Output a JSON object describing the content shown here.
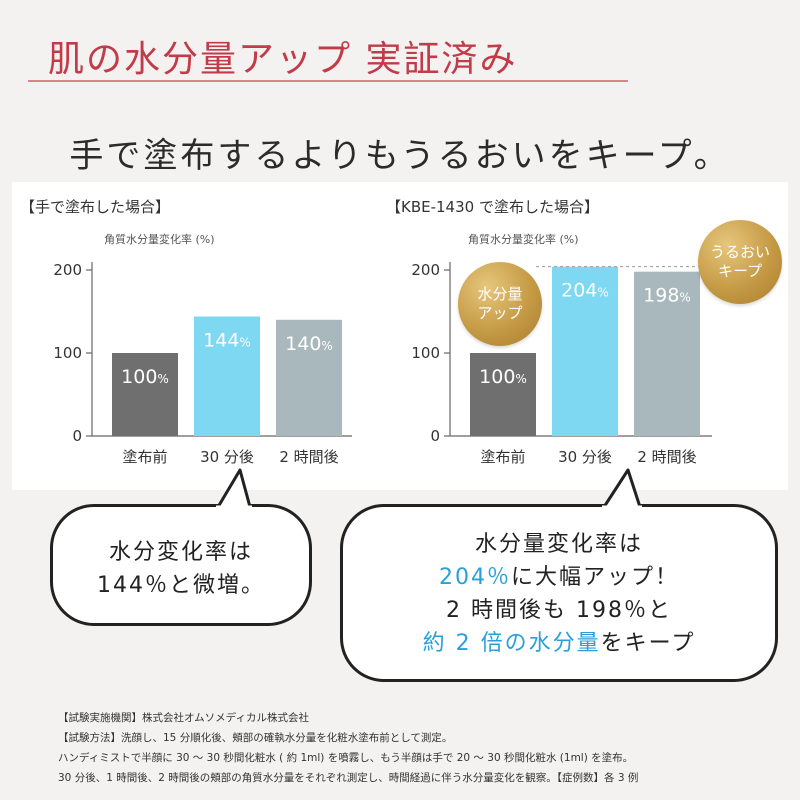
{
  "headline": "肌の水分量アップ 実証済み",
  "subheadline": "手で塗布するよりもうるおいをキープ。",
  "chart_data": [
    {
      "type": "bar",
      "title": "【手で塗布した場合】",
      "ylabel": "角質水分量変化率 (%)",
      "ylim": [
        0,
        200
      ],
      "yticks": [
        0,
        100,
        200
      ],
      "categories": [
        "塗布前",
        "30 分後",
        "2 時間後"
      ],
      "values": [
        100,
        144,
        140
      ],
      "value_labels": [
        "100",
        "144",
        "140"
      ],
      "unit": "%",
      "colors": [
        "#6f6f6f",
        "#7ed8f1",
        "#a8b8bc"
      ],
      "grid": false
    },
    {
      "type": "bar",
      "title": "【KBE-1430 で塗布した場合】",
      "ylabel": "角質水分量変化率 (%)",
      "ylim": [
        0,
        200
      ],
      "yticks": [
        0,
        100,
        200
      ],
      "categories": [
        "塗布前",
        "30 分後",
        "2 時間後"
      ],
      "values": [
        100,
        204,
        198
      ],
      "value_labels": [
        "100",
        "204",
        "198"
      ],
      "unit": "%",
      "colors": [
        "#6f6f6f",
        "#7ed8f1",
        "#a8b8bc"
      ],
      "grid": false,
      "annotations": [
        {
          "text": [
            "水分量",
            "アップ"
          ],
          "target": "30 分後"
        },
        {
          "text": [
            "うるおい",
            "キープ"
          ],
          "target": "2 時間後"
        }
      ]
    }
  ],
  "bubbles": {
    "left": {
      "lines": [
        "水分変化率は",
        "144％と微増。"
      ]
    },
    "right": {
      "line1": "水分量変化率は",
      "line2_highlight": "204％",
      "line2_rest": "に大幅アップ！",
      "line3": "2 時間後も 198％と",
      "line4_highlight": "約 2 倍の水分量",
      "line4_rest": "をキープ"
    }
  },
  "colors": {
    "headline": "#c23b48",
    "highlight": "#2a9fd8",
    "gold": "#c59a45"
  },
  "notes": [
    "【試験実施機関】株式会社オムソメディカル株式会社",
    "【試験方法】洗顔し、15 分順化後、頬部の確執水分量を化粧水塗布前として測定。",
    "ハンディミストで半顔に 30 ～ 30 秒間化粧水 ( 約 1ml) を噴霧し、もう半顔は手で 20 ～ 30 秒間化粧水 (1ml) を塗布。",
    "30 分後、1 時間後、2 時間後の頬部の角質水分量をそれぞれ測定し、時間経過に伴う水分量変化を観察。【症例数】各 3 例"
  ]
}
